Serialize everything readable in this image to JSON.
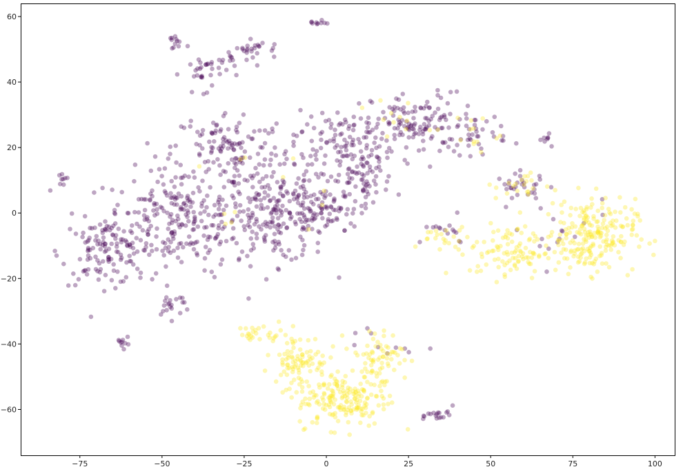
{
  "chart_data": {
    "type": "scatter",
    "title": "",
    "xlabel": "",
    "ylabel": "",
    "xlim": [
      -93,
      106
    ],
    "ylim": [
      -74,
      64
    ],
    "xticks": [
      -75,
      -50,
      -25,
      0,
      25,
      50,
      75,
      100
    ],
    "yticks": [
      -60,
      -40,
      -20,
      0,
      20,
      40,
      60
    ],
    "grid": false,
    "legend": "none",
    "marker_alpha": 0.35,
    "series": [
      {
        "color": "#440154",
        "clusters": [
          {
            "center": [
              -45,
              -2
            ],
            "spread": [
              16,
              11
            ],
            "count": 260
          },
          {
            "center": [
              -15,
              0
            ],
            "spread": [
              12,
              11
            ],
            "count": 220
          },
          {
            "center": [
              -68,
              -12
            ],
            "spread": [
              9,
              7
            ],
            "count": 110
          },
          {
            "center": [
              -30,
              20
            ],
            "spread": [
              12,
              8
            ],
            "count": 120
          },
          {
            "center": [
              5,
              22
            ],
            "spread": [
              11,
              7
            ],
            "count": 120
          },
          {
            "center": [
              28,
              27
            ],
            "spread": [
              10,
              7
            ],
            "count": 110
          },
          {
            "center": [
              10,
              10
            ],
            "spread": [
              8,
              6
            ],
            "count": 70
          },
          {
            "center": [
              0,
              0
            ],
            "spread": [
              7,
              5
            ],
            "count": 60
          },
          {
            "center": [
              45,
              25
            ],
            "spread": [
              7,
              5
            ],
            "count": 40
          },
          {
            "center": [
              60,
              8
            ],
            "spread": [
              6,
              3
            ],
            "count": 30
          },
          {
            "center": [
              -37,
              43
            ],
            "spread": [
              5,
              4
            ],
            "count": 30
          },
          {
            "center": [
              -28,
              48
            ],
            "spread": [
              5,
              3
            ],
            "count": 20
          },
          {
            "center": [
              -20,
              50
            ],
            "spread": [
              4,
              2
            ],
            "count": 15
          },
          {
            "center": [
              -46,
              52
            ],
            "spread": [
              2,
              2
            ],
            "count": 12
          },
          {
            "center": [
              -3,
              58
            ],
            "spread": [
              2,
              0.5
            ],
            "count": 10
          },
          {
            "center": [
              -47,
              -28
            ],
            "spread": [
              4,
              3
            ],
            "count": 20
          },
          {
            "center": [
              -62,
              -39
            ],
            "spread": [
              1.5,
              1.5
            ],
            "count": 10
          },
          {
            "center": [
              -80,
              9
            ],
            "spread": [
              1.5,
              1.5
            ],
            "count": 8
          },
          {
            "center": [
              67,
              23
            ],
            "spread": [
              2,
              1.5
            ],
            "count": 8
          },
          {
            "center": [
              35,
              -62
            ],
            "spread": [
              3,
              2
            ],
            "count": 18
          },
          {
            "center": [
              35,
              -6
            ],
            "spread": [
              8,
              3
            ],
            "count": 15
          },
          {
            "center": [
              70,
              -6
            ],
            "spread": [
              12,
              8
            ],
            "count": 15
          },
          {
            "center": [
              15,
              -40
            ],
            "spread": [
              8,
              5
            ],
            "count": 10
          }
        ]
      },
      {
        "color": "#fde725",
        "clusters": [
          {
            "center": [
              80,
              -7
            ],
            "spread": [
              10,
              8
            ],
            "count": 230
          },
          {
            "center": [
              55,
              -12
            ],
            "spread": [
              8,
              6
            ],
            "count": 90
          },
          {
            "center": [
              5,
              -57
            ],
            "spread": [
              10,
              6
            ],
            "count": 170
          },
          {
            "center": [
              -8,
              -45
            ],
            "spread": [
              6,
              6
            ],
            "count": 90
          },
          {
            "center": [
              15,
              -45
            ],
            "spread": [
              6,
              7
            ],
            "count": 80
          },
          {
            "center": [
              -20,
              -37
            ],
            "spread": [
              5,
              2
            ],
            "count": 25
          },
          {
            "center": [
              35,
              -8
            ],
            "spread": [
              6,
              3
            ],
            "count": 20
          },
          {
            "center": [
              60,
              8
            ],
            "spread": [
              6,
              3
            ],
            "count": 20
          },
          {
            "center": [
              45,
              25
            ],
            "spread": [
              6,
              5
            ],
            "count": 12
          },
          {
            "center": [
              20,
              28
            ],
            "spread": [
              8,
              6
            ],
            "count": 12
          },
          {
            "center": [
              -20,
              5
            ],
            "spread": [
              15,
              10
            ],
            "count": 12
          }
        ]
      }
    ]
  }
}
